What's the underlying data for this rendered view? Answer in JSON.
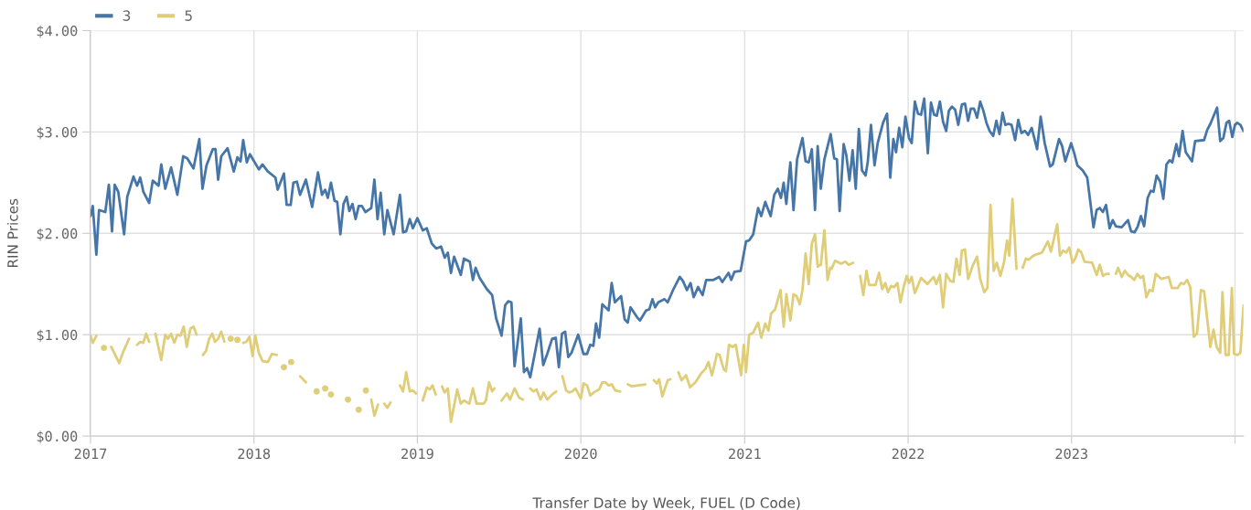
{
  "chart_data": {
    "type": "line",
    "xlabel": "Transfer Date by Week, FUEL (D Code)",
    "ylabel": "RIN Prices",
    "xlim": [
      "2016-12-31",
      "2024-01-20"
    ],
    "xticks": [
      {
        "value": "2017-01-01",
        "label": "2017"
      },
      {
        "value": "2018-01-01",
        "label": "2018"
      },
      {
        "value": "2019-01-01",
        "label": "2019"
      },
      {
        "value": "2020-01-01",
        "label": "2020"
      },
      {
        "value": "2021-01-01",
        "label": "2021"
      },
      {
        "value": "2022-01-01",
        "label": "2022"
      },
      {
        "value": "2023-01-01",
        "label": "2023"
      },
      {
        "value": "2024-01-01",
        "label": null
      }
    ],
    "ylim": [
      0,
      4
    ],
    "yticks": [
      {
        "value": 0,
        "label": "$0.00"
      },
      {
        "value": 1,
        "label": "$1.00"
      },
      {
        "value": 2,
        "label": "$2.00"
      },
      {
        "value": 3,
        "label": "$3.00"
      },
      {
        "value": 4,
        "label": "$4.00"
      }
    ],
    "grid": true,
    "legend": "top left",
    "marker": "none",
    "line_style": "solid",
    "series": [
      {
        "name": "3",
        "color": "#4676a8",
        "x": [
          "2017-01-01",
          "2017-01-06",
          "2017-01-14",
          "2017-01-20",
          "2017-02-03",
          "2017-02-11",
          "2017-02-18",
          "2017-02-24",
          "2017-03-04",
          "2017-03-17",
          "2017-03-24",
          "2017-04-07",
          "2017-04-15",
          "2017-04-22",
          "2017-04-29",
          "2017-05-12",
          "2017-05-20",
          "2017-06-02",
          "2017-06-08",
          "2017-06-17",
          "2017-06-30",
          "2017-07-14",
          "2017-07-27",
          "2017-08-05",
          "2017-08-19",
          "2017-09-01",
          "2017-09-08",
          "2017-09-17",
          "2017-10-01",
          "2017-10-07",
          "2017-10-13",
          "2017-10-20",
          "2017-11-03",
          "2017-11-17",
          "2017-11-25",
          "2017-12-02",
          "2017-12-08",
          "2017-12-16",
          "2017-12-23",
          "2018-01-12",
          "2018-01-20",
          "2018-02-01",
          "2018-02-18",
          "2018-02-23",
          "2018-03-09",
          "2018-03-15",
          "2018-03-24",
          "2018-03-30",
          "2018-04-07",
          "2018-04-14",
          "2018-04-27",
          "2018-05-11",
          "2018-05-24",
          "2018-06-02",
          "2018-06-09",
          "2018-06-15",
          "2018-06-22",
          "2018-06-30",
          "2018-07-06",
          "2018-07-13",
          "2018-07-20",
          "2018-07-27",
          "2018-08-02",
          "2018-08-09",
          "2018-08-16",
          "2018-08-23",
          "2018-08-30",
          "2018-09-07",
          "2018-09-20",
          "2018-09-27",
          "2018-10-04",
          "2018-10-11",
          "2018-10-19",
          "2018-10-26",
          "2018-11-09",
          "2018-11-23",
          "2018-11-30",
          "2018-12-07",
          "2018-12-15",
          "2018-12-22",
          "2019-01-01",
          "2019-01-13",
          "2019-01-22",
          "2019-02-02",
          "2019-02-12",
          "2019-02-23",
          "2019-03-03",
          "2019-03-10",
          "2019-03-17",
          "2019-03-24",
          "2019-04-08",
          "2019-04-15",
          "2019-04-28",
          "2019-05-05",
          "2019-05-11",
          "2019-05-20",
          "2019-06-05",
          "2019-06-17",
          "2019-06-26",
          "2019-07-08",
          "2019-07-16",
          "2019-07-23",
          "2019-07-30",
          "2019-08-06",
          "2019-08-20",
          "2019-08-27",
          "2019-09-03",
          "2019-09-10",
          "2019-10-01",
          "2019-10-09",
          "2019-10-18",
          "2019-10-29",
          "2019-11-06",
          "2019-11-13",
          "2019-11-20",
          "2019-11-27",
          "2019-12-04",
          "2019-12-11",
          "2019-12-26",
          "2020-01-07",
          "2020-01-15",
          "2020-01-22",
          "2020-01-29",
          "2020-02-04",
          "2020-02-11",
          "2020-02-18",
          "2020-03-03",
          "2020-03-10",
          "2020-03-17",
          "2020-03-31",
          "2020-04-08",
          "2020-04-15",
          "2020-04-21",
          "2020-05-06",
          "2020-05-12",
          "2020-05-26",
          "2020-06-02",
          "2020-06-09",
          "2020-06-15",
          "2020-06-22",
          "2020-07-06",
          "2020-07-13",
          "2020-07-26",
          "2020-08-09",
          "2020-08-16",
          "2020-08-25",
          "2020-09-02",
          "2020-09-09",
          "2020-09-19",
          "2020-09-29",
          "2020-10-07",
          "2020-10-23",
          "2020-11-05",
          "2020-11-12",
          "2020-11-26",
          "2020-12-02",
          "2020-12-09",
          "2020-12-23",
          "2021-01-04",
          "2021-01-11",
          "2021-01-20",
          "2021-01-31",
          "2021-02-07",
          "2021-02-16",
          "2021-02-28",
          "2021-03-08",
          "2021-03-16",
          "2021-03-23",
          "2021-03-29",
          "2021-04-04",
          "2021-04-13",
          "2021-04-20",
          "2021-04-28",
          "2021-05-10",
          "2021-05-17",
          "2021-05-24",
          "2021-05-31",
          "2021-06-07",
          "2021-06-13",
          "2021-06-20",
          "2021-06-28",
          "2021-07-12",
          "2021-07-20",
          "2021-07-26",
          "2021-08-01",
          "2021-08-10",
          "2021-08-16",
          "2021-08-23",
          "2021-08-30",
          "2021-09-06",
          "2021-09-13",
          "2021-09-20",
          "2021-09-28",
          "2021-10-03",
          "2021-10-10",
          "2021-10-18",
          "2021-10-25",
          "2021-11-06",
          "2021-11-15",
          "2021-11-22",
          "2021-11-29",
          "2021-12-05",
          "2021-12-12",
          "2021-12-19",
          "2021-12-26",
          "2022-01-03",
          "2022-01-09",
          "2022-01-16",
          "2022-01-23",
          "2022-01-30",
          "2022-02-06",
          "2022-02-14",
          "2022-02-21",
          "2022-02-28",
          "2022-03-06",
          "2022-03-13",
          "2022-03-20",
          "2022-03-27",
          "2022-04-02",
          "2022-04-09",
          "2022-04-16",
          "2022-04-23",
          "2022-05-01",
          "2022-05-08",
          "2022-05-15",
          "2022-05-21",
          "2022-05-28",
          "2022-06-04",
          "2022-06-11",
          "2022-06-18",
          "2022-06-25",
          "2022-07-02",
          "2022-07-10",
          "2022-07-17",
          "2022-07-24",
          "2022-07-31",
          "2022-08-06",
          "2022-08-13",
          "2022-08-20",
          "2022-08-28",
          "2022-09-04",
          "2022-09-11",
          "2022-09-19",
          "2022-09-26",
          "2022-10-04",
          "2022-10-16",
          "2022-10-24",
          "2022-11-02",
          "2022-11-14",
          "2022-11-20",
          "2022-12-04",
          "2022-12-11",
          "2022-12-18",
          "2022-12-31",
          "2023-01-07",
          "2023-01-14",
          "2023-01-26",
          "2023-02-05",
          "2023-02-19",
          "2023-02-26",
          "2023-03-05",
          "2023-03-12",
          "2023-03-19",
          "2023-03-27",
          "2023-04-03",
          "2023-04-10",
          "2023-04-23",
          "2023-05-07",
          "2023-05-14",
          "2023-05-22",
          "2023-05-29",
          "2023-06-05",
          "2023-06-12",
          "2023-06-20",
          "2023-06-27",
          "2023-07-03",
          "2023-07-10",
          "2023-07-18",
          "2023-07-25",
          "2023-08-01",
          "2023-08-08",
          "2023-08-14",
          "2023-08-23",
          "2023-08-29",
          "2023-09-06",
          "2023-09-13",
          "2023-09-27",
          "2023-10-04",
          "2023-10-24",
          "2023-10-31",
          "2023-11-07",
          "2023-11-22",
          "2023-11-29",
          "2023-12-06",
          "2023-12-13",
          "2023-12-19",
          "2023-12-26",
          "2024-01-01",
          "2024-01-06",
          "2024-01-13",
          "2024-01-20"
        ],
        "values": [
          2.17,
          2.27,
          1.79,
          2.23,
          2.21,
          2.48,
          2.02,
          2.48,
          2.41,
          1.99,
          2.36,
          2.56,
          2.47,
          2.55,
          2.41,
          2.3,
          2.52,
          2.47,
          2.68,
          2.44,
          2.65,
          2.38,
          2.76,
          2.74,
          2.64,
          2.93,
          2.44,
          2.67,
          2.83,
          2.83,
          2.53,
          2.76,
          2.84,
          2.61,
          2.75,
          2.71,
          2.92,
          2.7,
          2.78,
          2.63,
          2.68,
          2.61,
          2.55,
          2.43,
          2.59,
          2.28,
          2.28,
          2.5,
          2.51,
          2.38,
          2.53,
          2.26,
          2.6,
          2.38,
          2.43,
          2.35,
          2.5,
          2.32,
          2.31,
          1.99,
          2.29,
          2.36,
          2.22,
          2.29,
          2.14,
          2.27,
          2.27,
          2.21,
          2.25,
          2.53,
          2.14,
          2.4,
          1.99,
          2.23,
          1.99,
          2.38,
          2.01,
          2.02,
          2.14,
          2.05,
          2.15,
          2.03,
          2.05,
          1.9,
          1.85,
          1.87,
          1.76,
          1.81,
          1.61,
          1.77,
          1.59,
          1.75,
          1.72,
          1.54,
          1.66,
          1.56,
          1.45,
          1.39,
          1.16,
          0.99,
          1.29,
          1.33,
          1.32,
          0.69,
          1.16,
          0.63,
          0.67,
          0.58,
          1.06,
          0.7,
          0.81,
          0.96,
          0.97,
          0.68,
          1.01,
          1.03,
          0.78,
          0.82,
          1.0,
          0.81,
          0.81,
          0.9,
          0.89,
          1.11,
          0.97,
          1.3,
          1.24,
          1.51,
          1.32,
          1.38,
          1.15,
          1.12,
          1.27,
          1.17,
          1.14,
          1.24,
          1.25,
          1.35,
          1.27,
          1.32,
          1.35,
          1.32,
          1.45,
          1.57,
          1.53,
          1.44,
          1.51,
          1.37,
          1.47,
          1.39,
          1.54,
          1.54,
          1.57,
          1.52,
          1.61,
          1.54,
          1.62,
          1.63,
          1.92,
          1.93,
          1.99,
          2.25,
          2.17,
          2.31,
          2.17,
          2.38,
          2.44,
          2.35,
          2.5,
          2.29,
          2.7,
          2.23,
          2.73,
          2.94,
          2.71,
          2.7,
          2.83,
          2.23,
          2.86,
          2.44,
          2.73,
          2.98,
          2.74,
          2.73,
          2.22,
          2.88,
          2.77,
          2.52,
          2.82,
          2.44,
          3.03,
          2.62,
          2.57,
          2.71,
          3.07,
          2.67,
          2.89,
          3.09,
          3.18,
          2.55,
          2.93,
          2.8,
          3.04,
          2.85,
          3.15,
          2.94,
          2.89,
          3.3,
          3.18,
          3.17,
          3.33,
          2.79,
          3.29,
          3.17,
          3.16,
          3.3,
          3.1,
          3.01,
          3.21,
          3.25,
          3.22,
          3.07,
          3.27,
          3.28,
          3.11,
          3.23,
          3.23,
          3.14,
          3.3,
          3.21,
          3.09,
          3.01,
          2.96,
          3.11,
          2.98,
          3.19,
          3.07,
          3.08,
          3.07,
          2.92,
          3.12,
          2.99,
          3.01,
          2.97,
          3.04,
          2.83,
          3.15,
          2.89,
          2.66,
          2.68,
          2.93,
          2.86,
          2.71,
          2.89,
          2.79,
          2.67,
          2.62,
          2.55,
          2.06,
          2.23,
          2.25,
          2.21,
          2.28,
          2.05,
          2.13,
          2.07,
          2.06,
          2.13,
          2.02,
          2.01,
          2.07,
          2.17,
          2.07,
          2.35,
          2.42,
          2.41,
          2.57,
          2.51,
          2.34,
          2.68,
          2.72,
          2.7,
          2.88,
          2.76,
          3.01,
          2.8,
          2.71,
          2.91,
          2.92,
          3.02,
          3.08,
          3.24,
          2.91,
          2.94,
          3.09,
          3.11,
          2.95,
          3.07,
          3.09,
          3.07,
          3.01
        ]
      },
      {
        "name": "5",
        "color": "#e0cd78",
        "x": [
          "2017-01-01",
          "2017-01-06",
          "2017-01-14",
          "2017-01-22",
          "2017-01-31",
          "2017-02-08",
          "2017-02-16",
          "2017-02-23",
          "2017-03-06",
          "2017-03-14",
          "2017-03-28",
          "2017-04-07",
          "2017-04-15",
          "2017-04-22",
          "2017-04-29",
          "2017-05-05",
          "2017-05-12",
          "2017-05-19",
          "2017-05-26",
          "2017-06-08",
          "2017-06-17",
          "2017-06-23",
          "2017-06-30",
          "2017-07-07",
          "2017-07-14",
          "2017-07-21",
          "2017-07-28",
          "2017-08-04",
          "2017-08-12",
          "2017-08-19",
          "2017-08-26",
          "2017-09-02",
          "2017-09-09",
          "2017-09-16",
          "2017-09-23",
          "2017-09-30",
          "2017-10-06",
          "2017-10-13",
          "2017-10-20",
          "2017-10-27",
          "2017-11-03",
          "2017-11-10",
          "2017-11-18",
          "2017-11-25",
          "2017-12-01",
          "2017-12-08",
          "2017-12-15",
          "2017-12-22",
          "2017-12-29",
          "2018-01-04",
          "2018-01-12",
          "2018-01-20",
          "2018-02-01",
          "2018-02-10",
          "2018-02-21",
          "2018-03-01",
          "2018-03-09",
          "2018-03-15",
          "2018-03-25",
          "2018-04-06",
          "2018-04-14",
          "2018-04-27",
          "2018-05-10",
          "2018-05-21",
          "2018-06-01",
          "2018-06-09",
          "2018-06-16",
          "2018-06-22",
          "2018-07-10",
          "2018-07-30",
          "2018-08-12",
          "2018-08-23",
          "2018-08-30",
          "2018-09-08",
          "2018-09-14",
          "2018-09-20",
          "2018-09-27",
          "2018-10-05",
          "2018-10-12",
          "2018-10-19",
          "2018-10-26",
          "2018-11-02",
          "2018-11-12",
          "2018-11-23",
          "2018-11-30",
          "2018-12-07",
          "2018-12-15",
          "2018-12-22",
          "2018-12-29",
          "2019-01-06",
          "2019-01-13",
          "2019-01-22",
          "2019-01-29",
          "2019-02-04",
          "2019-02-11",
          "2019-02-18",
          "2019-02-25",
          "2019-03-03",
          "2019-03-10",
          "2019-03-17",
          "2019-03-31",
          "2019-04-08",
          "2019-04-15",
          "2019-04-27",
          "2019-05-05",
          "2019-05-13",
          "2019-05-29",
          "2019-06-03",
          "2019-06-10",
          "2019-06-17",
          "2019-06-22",
          "2019-07-01",
          "2019-07-08",
          "2019-07-20",
          "2019-07-27",
          "2019-08-06",
          "2019-08-16",
          "2019-08-25",
          "2019-09-02",
          "2019-09-10",
          "2019-09-17",
          "2019-09-24",
          "2019-10-03",
          "2019-10-10",
          "2019-10-18",
          "2019-10-29",
          "2019-11-07",
          "2019-11-14",
          "2019-11-21",
          "2019-11-29",
          "2019-12-06",
          "2019-12-13",
          "2019-12-20",
          "2020-01-01",
          "2020-01-07",
          "2020-01-15",
          "2020-01-22",
          "2020-01-30",
          "2020-02-11",
          "2020-02-18",
          "2020-02-25",
          "2020-03-03",
          "2020-03-10",
          "2020-03-18",
          "2020-03-29",
          "2020-04-07",
          "2020-04-15",
          "2020-04-24",
          "2020-05-09",
          "2020-05-24",
          "2020-06-03",
          "2020-06-12",
          "2020-06-19",
          "2020-06-24",
          "2020-07-01",
          "2020-07-13",
          "2020-07-19",
          "2020-07-28",
          "2020-08-06",
          "2020-08-13",
          "2020-08-23",
          "2020-09-01",
          "2020-09-13",
          "2020-09-26",
          "2020-10-05",
          "2020-10-12",
          "2020-10-20",
          "2020-10-31",
          "2020-11-06",
          "2020-11-15",
          "2020-11-20",
          "2020-11-27",
          "2020-12-05",
          "2020-12-12",
          "2020-12-24",
          "2020-12-30",
          "2021-01-04",
          "2021-01-11",
          "2021-01-20",
          "2021-01-31",
          "2021-02-07",
          "2021-02-16",
          "2021-02-23",
          "2021-03-01",
          "2021-03-10",
          "2021-03-22",
          "2021-03-29",
          "2021-04-04",
          "2021-04-13",
          "2021-04-20",
          "2021-04-27",
          "2021-05-04",
          "2021-05-10",
          "2021-05-17",
          "2021-05-24",
          "2021-05-31",
          "2021-06-07",
          "2021-06-13",
          "2021-06-20",
          "2021-06-28",
          "2021-07-05",
          "2021-07-11",
          "2021-07-14",
          "2021-07-22",
          "2021-08-04",
          "2021-08-14",
          "2021-08-21",
          "2021-08-31",
          "2021-09-08",
          "2021-09-16",
          "2021-09-23",
          "2021-09-30",
          "2021-10-06",
          "2021-10-20",
          "2021-10-28",
          "2021-11-04",
          "2021-11-11",
          "2021-11-17",
          "2021-11-24",
          "2021-12-01",
          "2021-12-08",
          "2021-12-15",
          "2021-12-22",
          "2021-12-29",
          "2022-01-03",
          "2022-01-09",
          "2022-01-16",
          "2022-01-30",
          "2022-02-13",
          "2022-02-27",
          "2022-03-05",
          "2022-03-13",
          "2022-03-20",
          "2022-03-27",
          "2022-04-05",
          "2022-04-12",
          "2022-04-19",
          "2022-04-26",
          "2022-05-01",
          "2022-05-08",
          "2022-05-15",
          "2022-05-26",
          "2022-06-04",
          "2022-06-11",
          "2022-06-20",
          "2022-06-27",
          "2022-07-04",
          "2022-07-11",
          "2022-07-18",
          "2022-07-26",
          "2022-08-03",
          "2022-08-10",
          "2022-08-15",
          "2022-08-22",
          "2022-08-31",
          "2022-09-07",
          "2022-09-14",
          "2022-09-21",
          "2022-09-28",
          "2022-10-05",
          "2022-10-13",
          "2022-10-27",
          "2022-11-09",
          "2022-11-16",
          "2022-11-30",
          "2022-12-06",
          "2022-12-13",
          "2022-12-20",
          "2022-12-27",
          "2023-01-03",
          "2023-01-09",
          "2023-01-16",
          "2023-01-23",
          "2023-01-30",
          "2023-02-16",
          "2023-02-26",
          "2023-03-05",
          "2023-03-12",
          "2023-03-19",
          "2023-03-25",
          "2023-04-02",
          "2023-04-10",
          "2023-04-15",
          "2023-04-23",
          "2023-04-30",
          "2023-05-07",
          "2023-05-14",
          "2023-05-21",
          "2023-05-28",
          "2023-06-04",
          "2023-06-10",
          "2023-06-17",
          "2023-06-24",
          "2023-07-01",
          "2023-07-08",
          "2023-07-21",
          "2023-08-06",
          "2023-08-13",
          "2023-08-26",
          "2023-09-02",
          "2023-09-09",
          "2023-09-16",
          "2023-09-23",
          "2023-10-01",
          "2023-10-08",
          "2023-10-17",
          "2023-10-24",
          "2023-11-07",
          "2023-11-14",
          "2023-11-21",
          "2023-11-29",
          "2023-12-04",
          "2023-12-11",
          "2023-12-18",
          "2023-12-25",
          "2023-12-30",
          "2024-01-07",
          "2024-01-13",
          "2024-01-20"
        ],
        "values": [
          0.99,
          0.92,
          0.99,
          null,
          0.87,
          null,
          0.88,
          0.82,
          0.72,
          0.82,
          0.96,
          null,
          0.9,
          0.93,
          0.92,
          1.01,
          0.93,
          null,
          1.01,
          0.75,
          1.0,
          0.96,
          1.01,
          0.92,
          1.0,
          0.99,
          1.08,
          0.88,
          1.06,
          1.08,
          1.0,
          null,
          0.8,
          0.84,
          0.96,
          1.01,
          0.93,
          0.96,
          1.03,
          0.93,
          null,
          0.96,
          null,
          0.95,
          null,
          0.92,
          0.93,
          0.98,
          0.79,
          0.99,
          0.82,
          0.74,
          0.73,
          0.81,
          0.8,
          null,
          0.68,
          null,
          0.73,
          null,
          0.59,
          0.53,
          null,
          0.44,
          null,
          0.47,
          null,
          0.41,
          null,
          0.36,
          null,
          0.26,
          null,
          0.45,
          null,
          0.36,
          0.2,
          0.31,
          null,
          0.32,
          0.28,
          0.33,
          null,
          0.5,
          0.44,
          0.63,
          0.44,
          0.45,
          0.42,
          null,
          0.35,
          0.48,
          0.46,
          0.5,
          0.41,
          null,
          0.49,
          0.43,
          0.47,
          0.14,
          0.46,
          0.32,
          0.35,
          0.32,
          0.47,
          0.32,
          0.32,
          0.35,
          0.53,
          0.44,
          0.47,
          null,
          0.35,
          0.42,
          0.36,
          0.47,
          0.38,
          0.36,
          null,
          0.47,
          0.44,
          0.46,
          0.36,
          0.43,
          0.36,
          0.41,
          0.44,
          null,
          0.59,
          0.45,
          0.43,
          0.44,
          0.47,
          0.37,
          0.52,
          0.5,
          0.4,
          0.43,
          0.46,
          0.53,
          0.53,
          0.5,
          0.51,
          0.45,
          0.44,
          null,
          0.51,
          0.49,
          0.5,
          0.51,
          null,
          0.55,
          0.52,
          0.56,
          0.39,
          0.55,
          0.56,
          null,
          0.63,
          0.55,
          0.6,
          0.48,
          0.53,
          0.62,
          0.66,
          0.73,
          0.6,
          0.81,
          0.8,
          0.66,
          0.64,
          0.9,
          0.88,
          0.9,
          0.6,
          0.9,
          0.63,
          1.0,
          1.02,
          1.12,
          0.97,
          1.11,
          1.04,
          1.21,
          1.25,
          1.44,
          1.08,
          1.4,
          1.14,
          1.4,
          1.38,
          1.3,
          1.44,
          1.8,
          1.5,
          1.9,
          1.99,
          1.67,
          1.69,
          2.03,
          1.54,
          1.66,
          1.65,
          1.73,
          1.7,
          1.72,
          1.69,
          1.71,
          null,
          1.58,
          1.39,
          1.63,
          1.49,
          1.49,
          1.61,
          1.45,
          1.51,
          1.42,
          1.48,
          1.47,
          1.51,
          1.32,
          1.47,
          1.58,
          1.51,
          1.57,
          1.41,
          1.56,
          1.5,
          1.57,
          1.5,
          1.59,
          1.27,
          1.6,
          1.53,
          1.52,
          1.75,
          1.59,
          1.83,
          1.84,
          1.55,
          1.69,
          1.77,
          1.55,
          1.42,
          1.46,
          2.28,
          1.63,
          1.71,
          1.58,
          1.71,
          1.93,
          1.78,
          2.34,
          1.65,
          null,
          1.66,
          1.75,
          1.74,
          1.77,
          1.79,
          1.81,
          1.92,
          1.82,
          2.09,
          1.78,
          1.83,
          1.81,
          1.86,
          1.71,
          1.75,
          1.84,
          1.81,
          1.72,
          1.71,
          1.59,
          1.69,
          1.58,
          1.6,
          1.6,
          null,
          1.6,
          1.66,
          1.57,
          1.63,
          1.59,
          1.57,
          1.54,
          1.6,
          1.56,
          1.58,
          1.37,
          1.44,
          1.43,
          1.6,
          1.55,
          1.57,
          1.46,
          1.46,
          1.51,
          1.5,
          1.54,
          1.47,
          0.98,
          1.01,
          1.44,
          1.43,
          0.88,
          1.05,
          0.88,
          0.82,
          1.42,
          0.8,
          0.8,
          1.46,
          0.81,
          0.8,
          0.82,
          1.29
        ]
      }
    ]
  }
}
